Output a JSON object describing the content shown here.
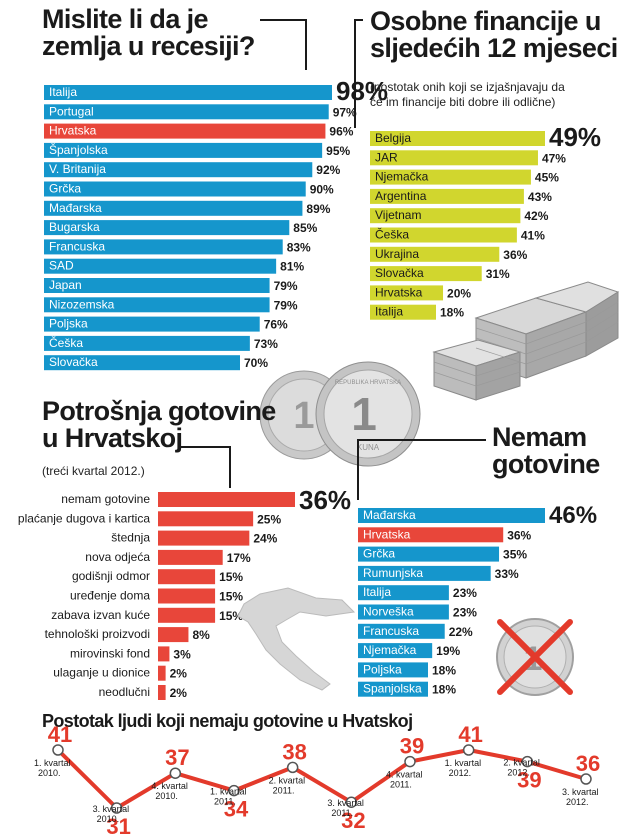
{
  "recession": {
    "title_line1": "Mislite li da je",
    "title_line2": "zemlja u recesiji?"
  },
  "finance": {
    "title_line1": "Osobne financije u",
    "title_line2": "sljedećih 12 mjeseci",
    "subtitle_line1": "(postotak onih koji se izjašnjavaju da",
    "subtitle_line2": "će im financije biti dobre ili odlične)"
  },
  "spending": {
    "title_line1": "Potrošnja gotovine",
    "title_line2": "u Hrvatskoj",
    "subtitle": "(treći kvartal 2012.)"
  },
  "nocash": {
    "title_line1": "Nemam",
    "title_line2": "gotovine"
  },
  "trend": {
    "title": "Postotak ljudi koji nemaju gotovine u Hvatskoj"
  },
  "coin": {
    "text_top": "REPUBLIKA HRVATSKA",
    "text_bottom": "KUNA",
    "number": "1"
  },
  "colors": {
    "blue": "#1596cc",
    "red": "#e8463a",
    "yellow": "#d1d62e",
    "trend_red": "#e33a2b"
  },
  "chart_data": [
    {
      "type": "bar",
      "orientation": "horizontal",
      "title": "Mislite li da je zemlja u recesiji?",
      "unit": "%",
      "categories": [
        "Italija",
        "Portugal",
        "Hrvatska",
        "Španjolska",
        "V. Britanija",
        "Grčka",
        "Mađarska",
        "Bugarska",
        "Francuska",
        "SAD",
        "Japan",
        "Nizozemska",
        "Poljska",
        "Češka",
        "Slovačka"
      ],
      "values": [
        98,
        97,
        96,
        95,
        92,
        90,
        89,
        85,
        83,
        81,
        79,
        79,
        76,
        73,
        70
      ],
      "value_labels": [
        "98%",
        "97%",
        "96%",
        "95%",
        "92%",
        "90%",
        "89%",
        "85%",
        "83%",
        "81%",
        "79%",
        "79%",
        "76%",
        "73%",
        "70%"
      ],
      "highlight": "Hrvatska"
    },
    {
      "type": "bar",
      "orientation": "horizontal",
      "title": "Osobne financije u sljedećih 12 mjeseci",
      "unit": "%",
      "categories": [
        "Belgija",
        "JAR",
        "Njemačka",
        "Argentina",
        "Vijetnam",
        "Češka",
        "Ukrajina",
        "Slovačka",
        "Hrvatska",
        "Italija"
      ],
      "values": [
        49,
        47,
        45,
        43,
        42,
        41,
        36,
        31,
        20,
        18
      ],
      "value_labels": [
        "49%",
        "47%",
        "45%",
        "43%",
        "42%",
        "41%",
        "36%",
        "31%",
        "20%",
        "18%"
      ]
    },
    {
      "type": "bar",
      "orientation": "horizontal",
      "title": "Potrošnja gotovine u Hrvatskoj",
      "unit": "%",
      "categories": [
        "nemam gotovine",
        "plaćanje dugova i kartica",
        "štednja",
        "nova odjeća",
        "godišnji odmor",
        "uređenje doma",
        "zabava izvan kuće",
        "tehnološki proizvodi",
        "mirovinski fond",
        "ulaganje u dionice",
        "neodlučni"
      ],
      "values": [
        36,
        25,
        24,
        17,
        15,
        15,
        15,
        8,
        3,
        2,
        2
      ],
      "value_labels": [
        "36%",
        "25%",
        "24%",
        "17%",
        "15%",
        "15%",
        "15%",
        "8%",
        "3%",
        "2%",
        "2%"
      ]
    },
    {
      "type": "bar",
      "orientation": "horizontal",
      "title": "Nemam gotovine",
      "unit": "%",
      "categories": [
        "Mađarska",
        "Hrvatska",
        "Grčka",
        "Rumunjska",
        "Italija",
        "Norveška",
        "Francuska",
        "Njemačka",
        "Poljska",
        "Spanjolska"
      ],
      "values": [
        46,
        36,
        35,
        33,
        23,
        23,
        22,
        19,
        18,
        18
      ],
      "value_labels": [
        "46%",
        "36%",
        "35%",
        "33%",
        "23%",
        "23%",
        "22%",
        "19%",
        "18%",
        "18%"
      ],
      "highlight": "Hrvatska"
    },
    {
      "type": "line",
      "title": "Postotak ljudi koji nemaju gotovine u Hvatskoj",
      "unit": "%",
      "x": [
        "1. kvartal 2010.",
        "3. kvartal 2010.",
        "4. kvartal 2010.",
        "1. kvartal 2011.",
        "2. kvartal 2011.",
        "3. kvartal 2011.",
        "4. kvartal 2011.",
        "1. kvartal 2012.",
        "2. kvartal 2012.",
        "3. kvartal 2012."
      ],
      "x_lines": [
        [
          "1. kvartal",
          "2010."
        ],
        [
          "3. kvartal",
          "2010."
        ],
        [
          "4. kvartal",
          "2010."
        ],
        [
          "1. kvartal",
          "2011."
        ],
        [
          "2. kvartal",
          "2011."
        ],
        [
          "3. kvartal",
          "2011."
        ],
        [
          "4. kvartal",
          "2011."
        ],
        [
          "1. kvartal",
          "2012."
        ],
        [
          "2. kvartal",
          "2012."
        ],
        [
          "3. kvartal",
          "2012."
        ]
      ],
      "y": [
        41,
        31,
        37,
        34,
        38,
        32,
        39,
        41,
        39,
        36
      ]
    }
  ]
}
